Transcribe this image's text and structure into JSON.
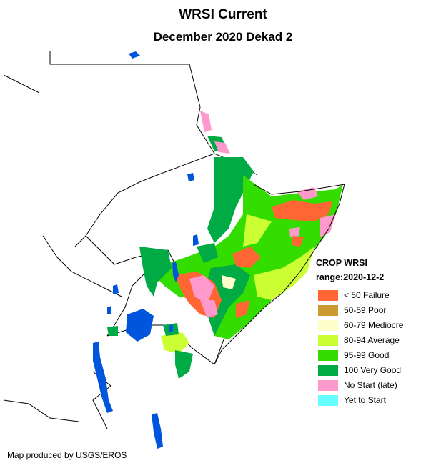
{
  "title": "WRSI Current",
  "subtitle": "December 2020 Dekad 2",
  "legend": {
    "title": "CROP WRSI",
    "range": "range:2020-12-2",
    "items": [
      {
        "label": "< 50  Failure",
        "color": "#ff6633"
      },
      {
        "label": "50-59 Poor",
        "color": "#cc9933"
      },
      {
        "label": "60-79 Mediocre",
        "color": "#ffffcc"
      },
      {
        "label": "80-94 Average",
        "color": "#ccff33"
      },
      {
        "label": "95-99 Good",
        "color": "#33dd00"
      },
      {
        "label": "100 Very Good",
        "color": "#00aa44"
      },
      {
        "label": "No Start (late)",
        "color": "#ff99cc"
      },
      {
        "label": "Yet to Start",
        "color": "#66ffff"
      }
    ]
  },
  "credit": "Map produced by USGS/EROS",
  "colors": {
    "water": "#0055dd",
    "border": "#000000",
    "land": "#ffffff"
  }
}
